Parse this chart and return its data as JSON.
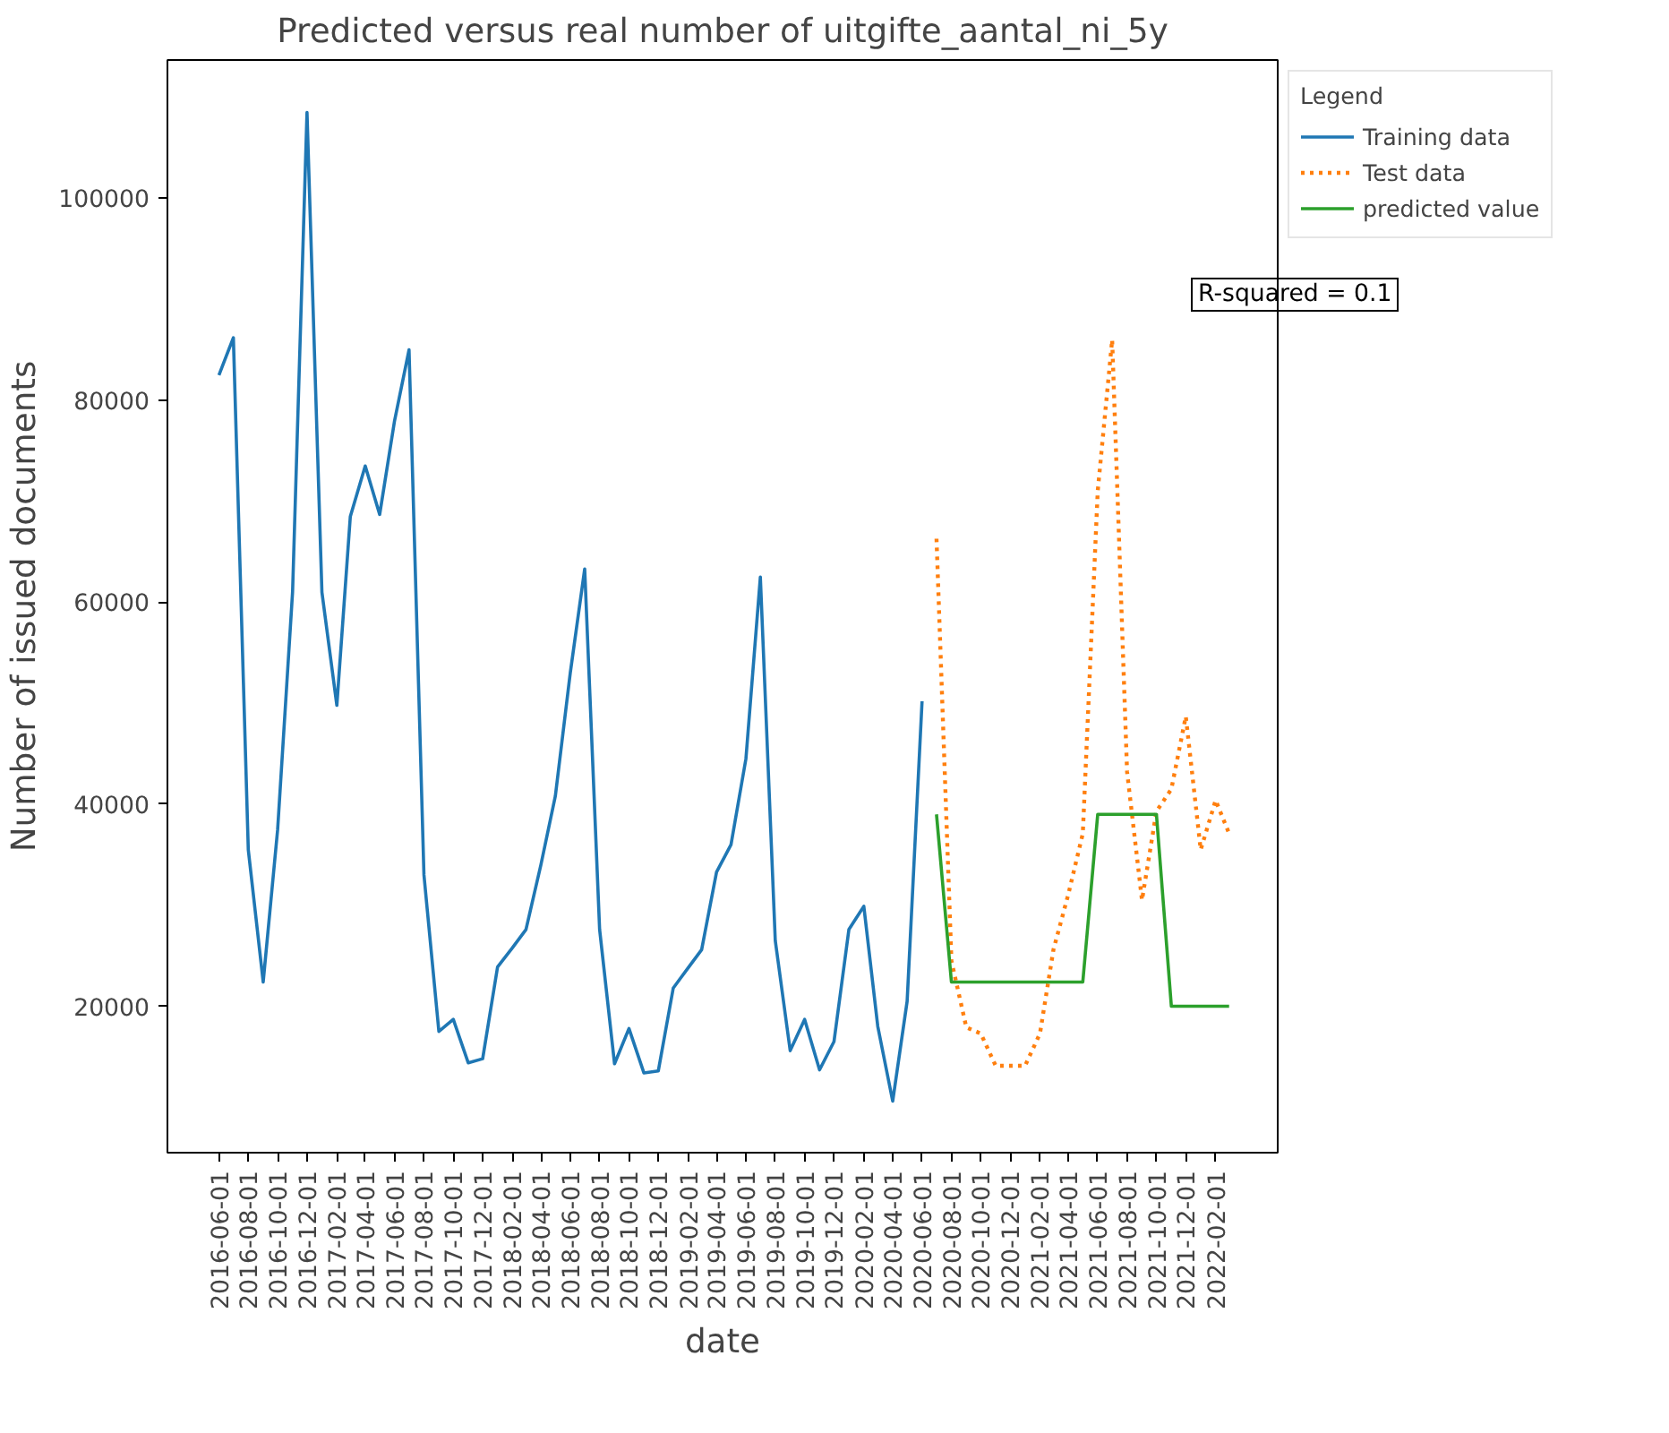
{
  "chart_data": {
    "type": "line",
    "title": "Predicted versus real number of uitgifte_aantal_ni_5y",
    "xlabel": "date",
    "ylabel": "Number of issued documents",
    "legend_title": "Legend",
    "legend": "top right",
    "grid": false,
    "marker": "none",
    "annotations": [
      "R-squared = 0.1"
    ],
    "xlim": [
      "2016-02-15",
      "2022-06-10"
    ],
    "xticks": [
      "2016-06-01",
      "2016-08-01",
      "2016-10-01",
      "2016-12-01",
      "2017-02-01",
      "2017-04-01",
      "2017-06-01",
      "2017-08-01",
      "2017-10-01",
      "2017-12-01",
      "2018-02-01",
      "2018-04-01",
      "2018-06-01",
      "2018-08-01",
      "2018-10-01",
      "2018-12-01",
      "2019-02-01",
      "2019-04-01",
      "2019-06-01",
      "2019-08-01",
      "2019-10-01",
      "2019-12-01",
      "2020-02-01",
      "2020-04-01",
      "2020-06-01",
      "2020-08-01",
      "2020-10-01",
      "2020-12-01",
      "2021-02-01",
      "2021-04-01",
      "2021-06-01",
      "2021-08-01",
      "2021-10-01",
      "2021-12-01",
      "2022-02-01"
    ],
    "ylim": [
      5500,
      113700
    ],
    "yticks": [
      20000,
      40000,
      60000,
      80000,
      100000
    ],
    "series": [
      {
        "name": "Training data",
        "color": "#1f77b4",
        "line_style": "solid",
        "x": [
          "2016-06-01",
          "2016-07-01",
          "2016-08-01",
          "2016-09-01",
          "2016-10-01",
          "2016-11-01",
          "2016-12-01",
          "2017-01-01",
          "2017-02-01",
          "2017-03-01",
          "2017-04-01",
          "2017-05-01",
          "2017-06-01",
          "2017-07-01",
          "2017-08-01",
          "2017-09-01",
          "2017-10-01",
          "2017-11-01",
          "2017-12-01",
          "2018-01-01",
          "2018-02-01",
          "2018-03-01",
          "2018-04-01",
          "2018-05-01",
          "2018-06-01",
          "2018-07-01",
          "2018-08-01",
          "2018-09-01",
          "2018-10-01",
          "2018-11-01",
          "2018-12-01",
          "2019-01-01",
          "2019-02-01",
          "2019-03-01",
          "2019-04-01",
          "2019-05-01",
          "2019-06-01",
          "2019-07-01",
          "2019-08-01",
          "2019-09-01",
          "2019-10-01",
          "2019-11-01",
          "2019-12-01",
          "2020-01-01",
          "2020-02-01",
          "2020-03-01",
          "2020-04-01",
          "2020-05-01",
          "2020-06-01"
        ],
        "values": [
          82500,
          86200,
          35500,
          22400,
          37500,
          61000,
          108500,
          61000,
          49800,
          68500,
          73500,
          68700,
          78000,
          85000,
          33000,
          17500,
          18700,
          14400,
          14800,
          23900,
          25800,
          27600,
          34000,
          40800,
          53000,
          63300,
          27600,
          14300,
          17800,
          13400,
          13600,
          21800,
          23800,
          25600,
          33300,
          36000,
          44500,
          62500,
          26500,
          15600,
          18700,
          13700,
          16500,
          27600,
          29900,
          18000,
          10600,
          20500,
          50200
        ]
      },
      {
        "name": "Test data",
        "color": "#ff7f0e",
        "line_style": "dotted",
        "x": [
          "2020-07-01",
          "2020-08-01",
          "2020-09-01",
          "2020-10-01",
          "2020-11-01",
          "2020-12-01",
          "2021-01-01",
          "2021-02-01",
          "2021-03-01",
          "2021-04-01",
          "2021-05-01",
          "2021-06-01",
          "2021-07-01",
          "2021-08-01",
          "2021-09-01",
          "2021-10-01",
          "2021-11-01",
          "2021-12-01",
          "2022-01-01",
          "2022-02-01",
          "2022-03-01"
        ],
        "values": [
          66300,
          24500,
          17900,
          17300,
          14100,
          14100,
          14100,
          17300,
          25600,
          31100,
          37100,
          71000,
          86000,
          43200,
          30500,
          39300,
          41500,
          48700,
          35500,
          40400,
          37100
        ]
      },
      {
        "name": "predicted value",
        "color": "#2ca02c",
        "line_style": "solid",
        "x": [
          "2020-07-01",
          "2020-08-01",
          "2020-09-01",
          "2020-10-01",
          "2020-11-01",
          "2020-12-01",
          "2021-01-01",
          "2021-02-01",
          "2021-03-01",
          "2021-04-01",
          "2021-05-01",
          "2021-06-01",
          "2021-07-01",
          "2021-08-01",
          "2021-09-01",
          "2021-10-01",
          "2021-11-01",
          "2021-12-01",
          "2022-01-01",
          "2022-02-01",
          "2022-03-01"
        ],
        "values": [
          39000,
          22400,
          22400,
          22400,
          22400,
          22400,
          22400,
          22400,
          22400,
          22400,
          22400,
          39000,
          39000,
          39000,
          39000,
          39000,
          20000,
          20000,
          20000,
          20000,
          20000
        ]
      }
    ]
  }
}
